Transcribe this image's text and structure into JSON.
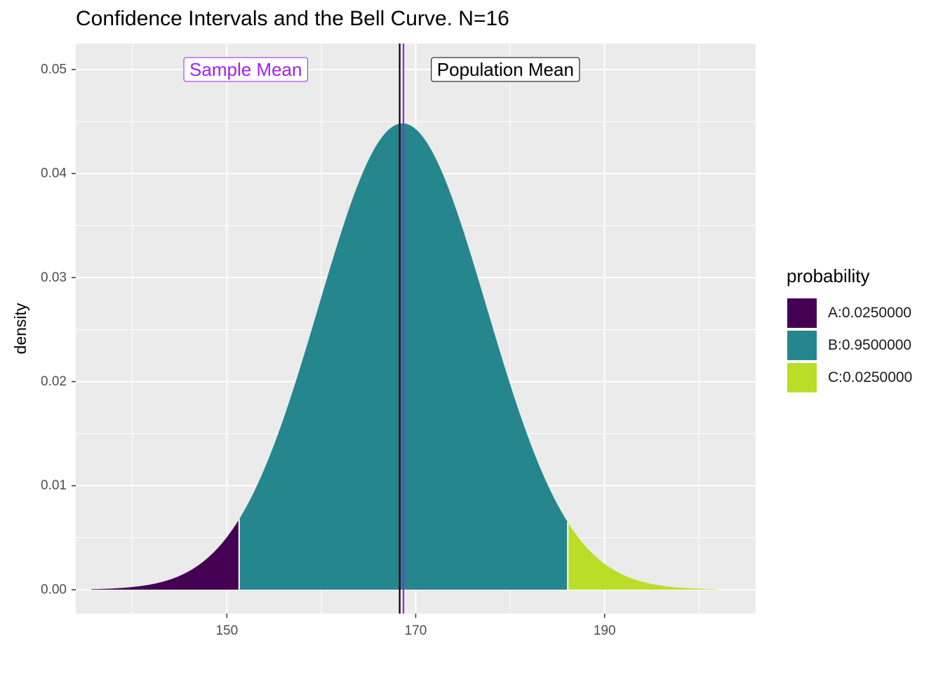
{
  "chart_data": {
    "type": "area",
    "title": "Confidence Intervals and the Bell Curve. N=16",
    "xlabel": "",
    "ylabel": "density",
    "xlim": [
      134,
      206
    ],
    "ylim": [
      -0.0023,
      0.0525
    ],
    "x_ticks": [
      150,
      170,
      190
    ],
    "y_ticks": [
      "0.00",
      "0.01",
      "0.02",
      "0.03",
      "0.04",
      "0.05"
    ],
    "grid": true,
    "distribution": {
      "kind": "normal",
      "mean": 168.6,
      "sd": 8.9,
      "x_range": [
        135.6,
        202
      ]
    },
    "regions": [
      {
        "label": "A:0.0250000",
        "x_from": 135.6,
        "x_to": 151.3,
        "color": "#440154"
      },
      {
        "label": "B:0.9500000",
        "x_from": 151.3,
        "x_to": 186.1,
        "color": "#26868d"
      },
      {
        "label": "C:0.0250000",
        "x_from": 186.1,
        "x_to": 202,
        "color": "#bade28"
      }
    ],
    "vlines": [
      {
        "name": "Population Mean",
        "x": 168.3,
        "color": "#000000"
      },
      {
        "name": "Sample Mean",
        "x": 168.7,
        "color": "#a020f0"
      }
    ],
    "annotations": [
      {
        "text": "Sample Mean",
        "x": 152,
        "y": 0.05,
        "color": "#a020f0"
      },
      {
        "text": "Population Mean",
        "x": 179.5,
        "y": 0.05,
        "color": "#000000"
      }
    ],
    "legend": {
      "title": "probability",
      "position": "right"
    }
  }
}
